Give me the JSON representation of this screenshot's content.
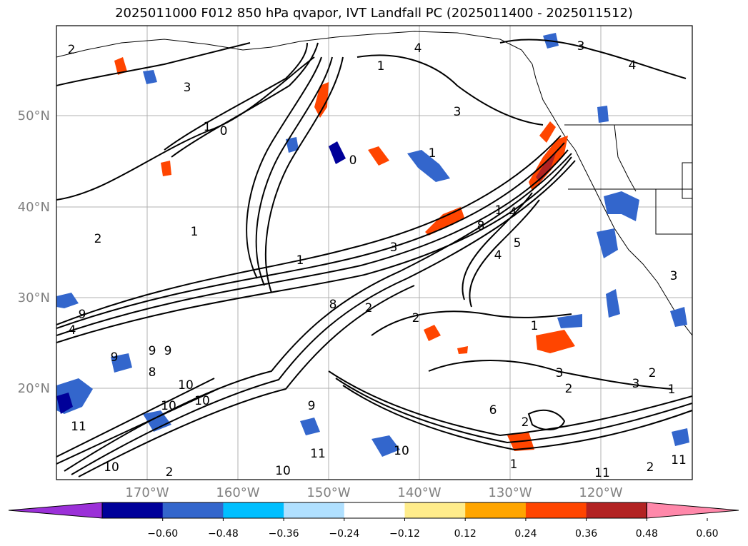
{
  "title": "2025011000 F012 850 hPa qvapor, IVT Landfall PC (2025011400 - 2025011512)",
  "lat_labels": [
    "50°N",
    "40°N",
    "30°N",
    "20°N"
  ],
  "lon_labels": [
    "170°W",
    "160°W",
    "150°W",
    "140°W",
    "130°W",
    "120°W"
  ],
  "colorbar": {
    "ticks": [
      "−0.60",
      "−0.48",
      "−0.36",
      "−0.24",
      "−0.12",
      "0.12",
      "0.24",
      "0.36",
      "0.48",
      "0.60"
    ],
    "colors": [
      "#9b30d8",
      "#000099",
      "#3366cc",
      "#00bfff",
      "#b0e0ff",
      "#ffffff",
      "#ffec8b",
      "#ffa500",
      "#ff4500",
      "#b22222",
      "#ff88aa"
    ]
  },
  "contour_labels": [
    "2",
    "3",
    "2",
    "4",
    "1",
    "3",
    "4",
    "1",
    "0",
    "3",
    "1",
    "1",
    "0",
    "1",
    "2",
    "1",
    "1",
    "3",
    "8",
    "4",
    "5",
    "2",
    "2",
    "1",
    "9",
    "8",
    "4",
    "9",
    "9",
    "9",
    "8",
    "10",
    "10",
    "11",
    "10",
    "10",
    "11",
    "9",
    "3",
    "2",
    "3",
    "2",
    "1",
    "2",
    "11",
    "10",
    "11",
    "6",
    "4",
    "3",
    "2",
    "10"
  ]
}
